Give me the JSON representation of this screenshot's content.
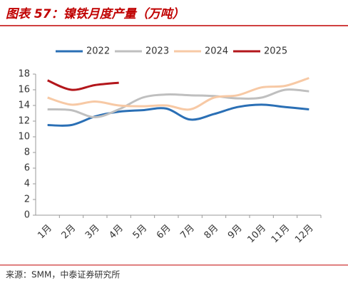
{
  "chart_data": {
    "type": "line",
    "title": "图表 57：镍铁月度产量（万吨）",
    "source": "来源：SMM，中泰证券研究所",
    "categories": [
      "1月",
      "2月",
      "3月",
      "4月",
      "5月",
      "6月",
      "7月",
      "8月",
      "9月",
      "10月",
      "11月",
      "12月"
    ],
    "series": [
      {
        "name": "2022",
        "color": "#2a6fb5",
        "values": [
          11.5,
          11.5,
          12.6,
          13.2,
          13.4,
          13.6,
          12.2,
          12.9,
          13.8,
          14.1,
          13.8,
          13.5
        ]
      },
      {
        "name": "2023",
        "color": "#bfbfbf",
        "values": [
          13.5,
          13.4,
          12.5,
          13.5,
          15.0,
          15.4,
          15.3,
          15.2,
          14.9,
          15.0,
          16.0,
          15.8
        ]
      },
      {
        "name": "2024",
        "color": "#f7c9a5",
        "values": [
          15.0,
          14.1,
          14.5,
          14.0,
          13.9,
          14.0,
          13.5,
          15.0,
          15.3,
          16.3,
          16.5,
          17.5
        ]
      },
      {
        "name": "2025",
        "color": "#b3161b",
        "values": [
          17.2,
          16.0,
          16.6,
          16.9,
          null,
          null,
          null,
          null,
          null,
          null,
          null,
          null
        ]
      }
    ],
    "ylim": [
      0,
      18
    ],
    "yticks": [
      0,
      2,
      4,
      6,
      8,
      10,
      12,
      14,
      16,
      18
    ],
    "legend": "top",
    "grid": false
  }
}
